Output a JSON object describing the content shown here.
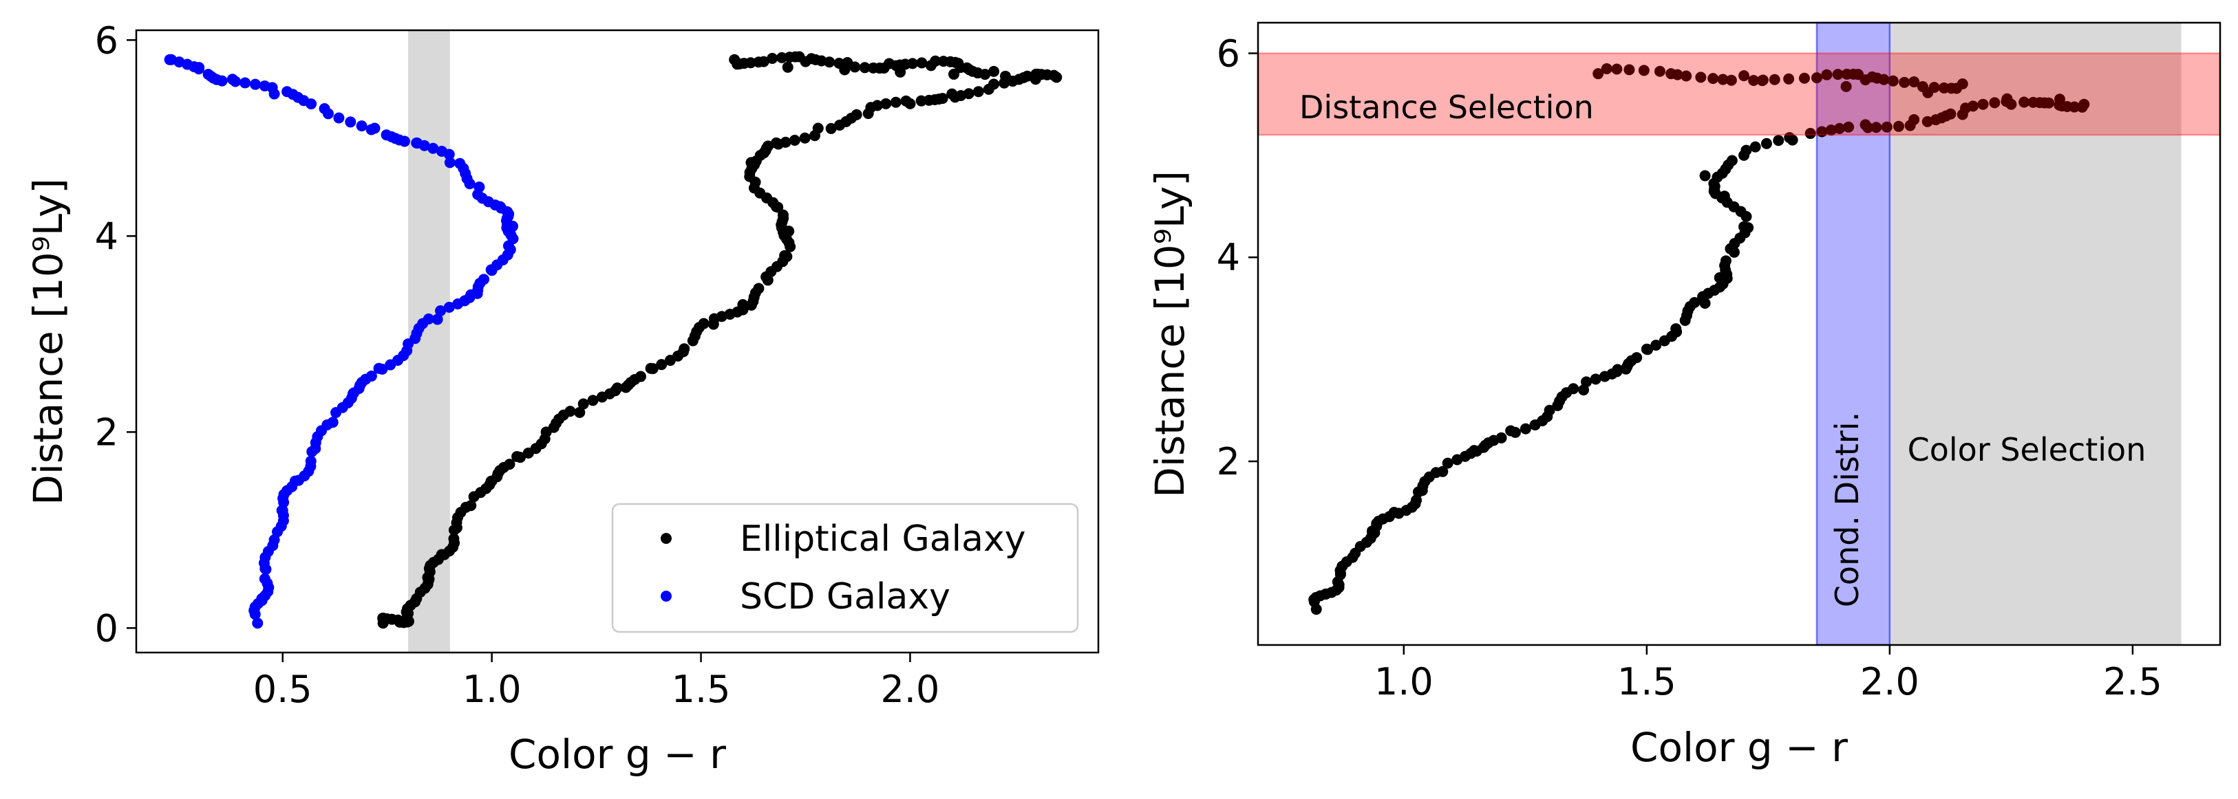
{
  "chart_data": [
    {
      "type": "scatter",
      "xlabel": "Color g − r",
      "ylabel": "Distance [10⁹Ly]",
      "xlim": [
        0.15,
        2.45
      ],
      "ylim": [
        -0.25,
        6.1
      ],
      "xticks": [
        "0.5",
        "1.0",
        "1.5",
        "2.0"
      ],
      "yticks": [
        "0",
        "2",
        "4",
        "6"
      ],
      "legend_position": "lower-right",
      "shaded_band": {
        "x": [
          0.8,
          0.9
        ],
        "color": "#d9d9d9"
      },
      "series": [
        {
          "name": "Elliptical Galaxy",
          "color": "#000000",
          "points": [
            [
              0.74,
              0.05
            ],
            [
              0.78,
              0.06
            ],
            [
              0.8,
              0.15
            ],
            [
              0.82,
              0.3
            ],
            [
              0.85,
              0.5
            ],
            [
              0.88,
              0.75
            ],
            [
              0.91,
              1.0
            ],
            [
              0.95,
              1.25
            ],
            [
              1.0,
              1.5
            ],
            [
              1.06,
              1.75
            ],
            [
              1.13,
              2.0
            ],
            [
              1.21,
              2.2
            ],
            [
              1.3,
              2.45
            ],
            [
              1.38,
              2.65
            ],
            [
              1.46,
              2.85
            ],
            [
              1.53,
              3.1
            ],
            [
              1.6,
              3.3
            ],
            [
              1.66,
              3.55
            ],
            [
              1.7,
              3.8
            ],
            [
              1.71,
              4.05
            ],
            [
              1.68,
              4.3
            ],
            [
              1.63,
              4.55
            ],
            [
              1.62,
              4.75
            ],
            [
              1.68,
              4.95
            ],
            [
              1.78,
              5.1
            ],
            [
              1.9,
              5.25
            ],
            [
              2.0,
              5.35
            ],
            [
              2.1,
              5.45
            ],
            [
              2.2,
              5.55
            ],
            [
              2.3,
              5.6
            ],
            [
              2.35,
              5.62
            ],
            [
              1.58,
              5.8
            ],
            [
              1.65,
              5.78
            ],
            [
              1.75,
              5.78
            ],
            [
              1.85,
              5.77
            ],
            [
              1.95,
              5.76
            ],
            [
              2.05,
              5.74
            ],
            [
              2.12,
              5.72
            ],
            [
              2.2,
              5.68
            ]
          ]
        },
        {
          "name": "SCD Galaxy",
          "color": "#0000ff",
          "points": [
            [
              0.44,
              0.05
            ],
            [
              0.45,
              0.3
            ],
            [
              0.46,
              0.6
            ],
            [
              0.48,
              0.9
            ],
            [
              0.5,
              1.2
            ],
            [
              0.53,
              1.5
            ],
            [
              0.57,
              1.8
            ],
            [
              0.62,
              2.1
            ],
            [
              0.67,
              2.4
            ],
            [
              0.73,
              2.65
            ],
            [
              0.8,
              2.9
            ],
            [
              0.87,
              3.15
            ],
            [
              0.95,
              3.4
            ],
            [
              1.0,
              3.65
            ],
            [
              1.04,
              3.9
            ],
            [
              1.05,
              4.1
            ],
            [
              1.02,
              4.3
            ],
            [
              0.97,
              4.5
            ],
            [
              0.9,
              4.75
            ],
            [
              0.82,
              4.95
            ],
            [
              0.72,
              5.1
            ],
            [
              0.6,
              5.3
            ],
            [
              0.48,
              5.45
            ],
            [
              0.38,
              5.6
            ],
            [
              0.3,
              5.72
            ],
            [
              0.23,
              5.8
            ]
          ]
        }
      ]
    },
    {
      "type": "scatter",
      "xlabel": "Color g − r",
      "ylabel": "Distance [10⁹Ly]",
      "xlim": [
        0.7,
        2.68
      ],
      "ylim": [
        0.2,
        6.3
      ],
      "xticks": [
        "1.0",
        "1.5",
        "2.0",
        "2.5"
      ],
      "yticks": [
        "2",
        "4",
        "6"
      ],
      "regions": [
        {
          "label": "Distance Selection",
          "y": [
            5.2,
            6.0
          ],
          "color": "#ff9999"
        },
        {
          "label": "Cond. Distri.",
          "x": [
            1.85,
            2.0
          ],
          "color": "#9999ff"
        },
        {
          "label": "Color Selection",
          "x": [
            2.0,
            2.6
          ],
          "color": "#d9d9d9"
        }
      ],
      "series": [
        {
          "name": "",
          "color": "#000000",
          "points": [
            [
              0.82,
              0.55
            ],
            [
              0.84,
              0.7
            ],
            [
              0.87,
              0.9
            ],
            [
              0.9,
              1.1
            ],
            [
              0.94,
              1.3
            ],
            [
              0.98,
              1.5
            ],
            [
              1.03,
              1.7
            ],
            [
              1.08,
              1.9
            ],
            [
              1.15,
              2.1
            ],
            [
              1.22,
              2.3
            ],
            [
              1.3,
              2.5
            ],
            [
              1.37,
              2.7
            ],
            [
              1.44,
              2.9
            ],
            [
              1.5,
              3.1
            ],
            [
              1.56,
              3.3
            ],
            [
              1.62,
              3.55
            ],
            [
              1.65,
              3.8
            ],
            [
              1.68,
              4.05
            ],
            [
              1.7,
              4.3
            ],
            [
              1.66,
              4.6
            ],
            [
              1.62,
              4.8
            ],
            [
              1.7,
              5.0
            ],
            [
              1.8,
              5.15
            ],
            [
              1.95,
              5.3
            ],
            [
              2.05,
              5.35
            ],
            [
              2.15,
              5.4
            ],
            [
              2.25,
              5.5
            ],
            [
              2.35,
              5.55
            ],
            [
              2.4,
              5.5
            ],
            [
              1.4,
              5.8
            ],
            [
              1.55,
              5.8
            ],
            [
              1.7,
              5.78
            ],
            [
              1.85,
              5.76
            ],
            [
              1.95,
              5.74
            ],
            [
              2.05,
              5.72
            ],
            [
              2.15,
              5.7
            ]
          ]
        }
      ]
    }
  ]
}
